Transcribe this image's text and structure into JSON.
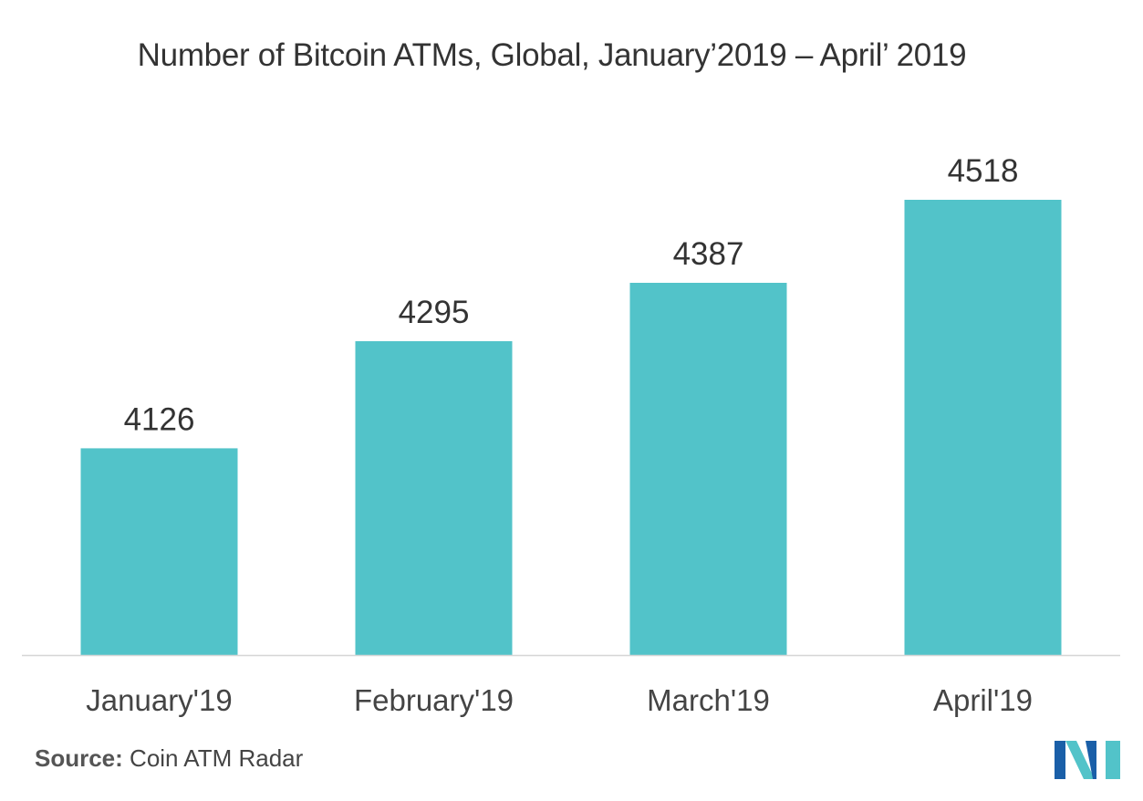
{
  "chart_data": {
    "type": "bar",
    "title": "Number of Bitcoin ATMs, Global, January’2019 – April’ 2019",
    "categories": [
      "January'19",
      "February'19",
      "March'19",
      "April'19"
    ],
    "values": [
      4126,
      4295,
      4387,
      4518
    ],
    "xlabel": "",
    "ylabel": "",
    "ylim": [
      3800,
      4600
    ],
    "grid": false,
    "legend": "none",
    "bar_color": "#52c3c9",
    "axis_color": "#d6d6d6"
  },
  "source": {
    "label": "Source:",
    "text": " Coin ATM Radar"
  },
  "logo": {
    "icon": "mordor-intelligence-logo",
    "colors": [
      "#1a5fa8",
      "#52c3c9"
    ]
  }
}
